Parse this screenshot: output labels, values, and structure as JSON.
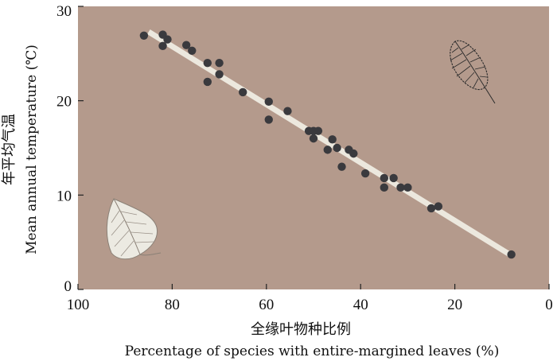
{
  "chart_data": {
    "type": "scatter",
    "title": "",
    "xlabel_cn": "全缘叶物种比例",
    "xlabel_en": "Percentage of species with entire-margined leaves (%)",
    "ylabel_cn": "年平均气温",
    "ylabel_en": "Mean annual temperature (℃)",
    "xlim": [
      100,
      0
    ],
    "ylim": [
      0,
      30
    ],
    "x_reversed": true,
    "x_ticks": [
      100,
      80,
      60,
      40,
      20,
      0
    ],
    "x_tick_labels": [
      "100",
      "80",
      "60",
      "40",
      "20",
      "0"
    ],
    "y_ticks": [
      0,
      10,
      20,
      30
    ],
    "y_tick_labels": [
      "0",
      "10",
      "20",
      "30"
    ],
    "grid": false,
    "legend": "none",
    "colors": {
      "plot_background": "#b49a8c",
      "point": "#3a3a3e",
      "trend_line": "#ece8de",
      "leaf": "#eceae2"
    },
    "points": [
      {
        "x": 86,
        "y": 26.9
      },
      {
        "x": 82,
        "y": 27.0
      },
      {
        "x": 81,
        "y": 26.5
      },
      {
        "x": 82,
        "y": 25.8
      },
      {
        "x": 77,
        "y": 25.9
      },
      {
        "x": 75.8,
        "y": 25.3
      },
      {
        "x": 72.5,
        "y": 24.0
      },
      {
        "x": 70,
        "y": 24.0
      },
      {
        "x": 70,
        "y": 22.8
      },
      {
        "x": 72.5,
        "y": 22.0
      },
      {
        "x": 65,
        "y": 20.9
      },
      {
        "x": 59.5,
        "y": 19.9
      },
      {
        "x": 59.5,
        "y": 18.0
      },
      {
        "x": 55.5,
        "y": 18.9
      },
      {
        "x": 51,
        "y": 16.8
      },
      {
        "x": 50,
        "y": 16.8
      },
      {
        "x": 49,
        "y": 16.8
      },
      {
        "x": 50,
        "y": 16.0
      },
      {
        "x": 47,
        "y": 14.8
      },
      {
        "x": 46,
        "y": 15.9
      },
      {
        "x": 45,
        "y": 15.0
      },
      {
        "x": 42.5,
        "y": 14.8
      },
      {
        "x": 41.5,
        "y": 14.4
      },
      {
        "x": 44,
        "y": 13.0
      },
      {
        "x": 39,
        "y": 12.3
      },
      {
        "x": 35,
        "y": 11.8
      },
      {
        "x": 33,
        "y": 11.8
      },
      {
        "x": 35,
        "y": 10.8
      },
      {
        "x": 31.5,
        "y": 10.8
      },
      {
        "x": 30,
        "y": 10.8
      },
      {
        "x": 25,
        "y": 8.6
      },
      {
        "x": 23.5,
        "y": 8.8
      },
      {
        "x": 8,
        "y": 3.7
      }
    ],
    "trend_line": {
      "x": [
        85,
        8
      ],
      "y": [
        27.3,
        3.6
      ]
    },
    "illustrations": [
      "toothed-leaf-illustration",
      "entire-leaf-illustration"
    ]
  }
}
